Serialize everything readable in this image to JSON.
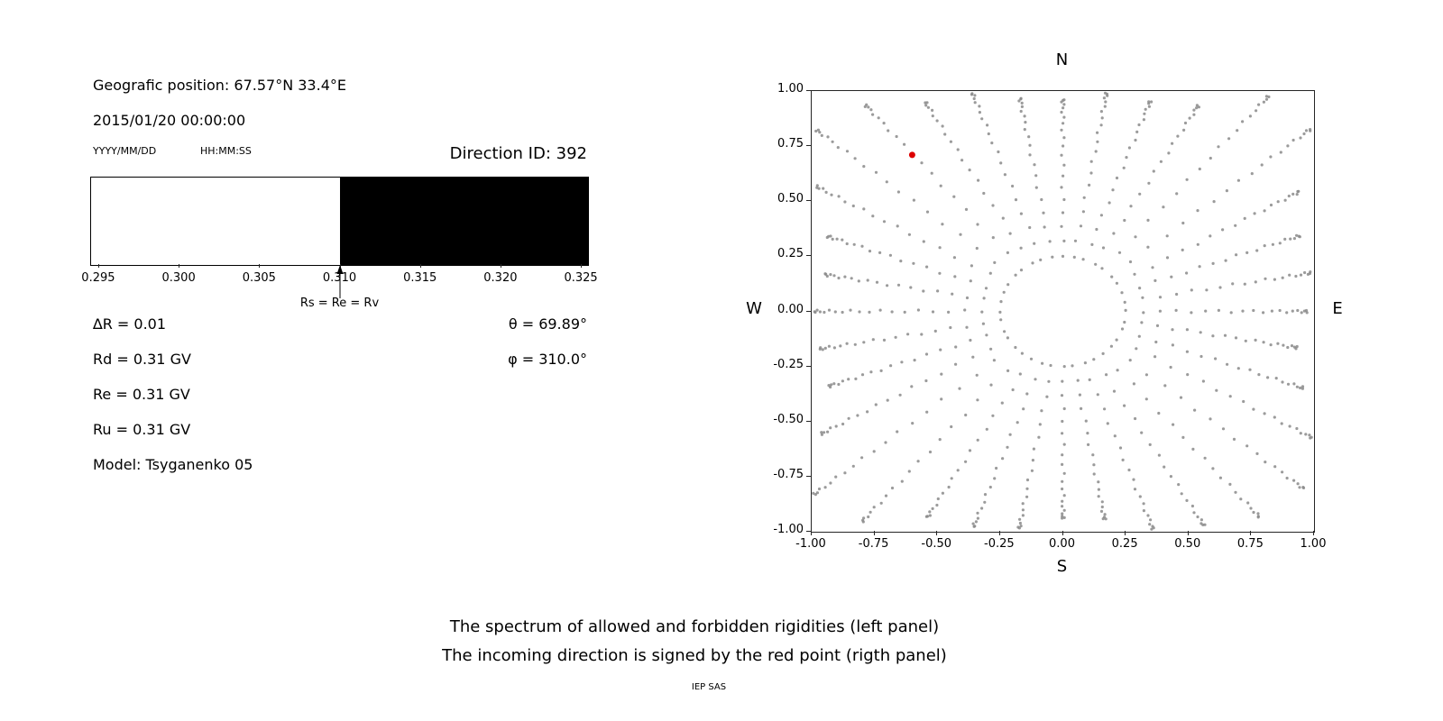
{
  "left_panel": {
    "position_label": "Geografic position: 67.57°N 33.4°E",
    "datetime": "2015/01/20 00:00:00",
    "date_format": "YYYY/MM/DD",
    "time_format": "HH:MM:SS",
    "direction_id": "Direction ID: 392",
    "delta_r": "∆R = 0.01",
    "rd": "Rd = 0.31 GV",
    "re": "Re = 0.31 GV",
    "ru": "Ru = 0.31 GV",
    "model": "Model: Tsyganenko 05",
    "theta": "θ = 69.89°",
    "phi": "φ = 310.0°"
  },
  "footer": {
    "line1": "The spectrum of allowed and forbidden rigidities (left panel)",
    "line2": "The incoming direction is signed by the red point (rigth panel)",
    "credit": "IEP SAS"
  },
  "chart_data": [
    {
      "id": "rigidity_spectrum",
      "type": "area",
      "title": "",
      "x_range": [
        0.2945,
        0.3255
      ],
      "tick_values": [
        0.295,
        0.3,
        0.305,
        0.31,
        0.315,
        0.32,
        0.325
      ],
      "tick_labels": [
        "0.295",
        "0.300",
        "0.305",
        "0.310",
        "0.315",
        "0.320",
        "0.325"
      ],
      "regions": [
        {
          "name": "allowed",
          "from": 0.2945,
          "to": 0.31,
          "color": "#ffffff"
        },
        {
          "name": "forbidden",
          "from": 0.31,
          "to": 0.3255,
          "color": "#000000"
        }
      ],
      "cutoff_value": 0.31,
      "cutoff_label": "Rs = Re = Rv"
    },
    {
      "id": "arrival_direction_map",
      "type": "scatter",
      "xlim": [
        -1.0,
        1.0
      ],
      "ylim": [
        -1.0,
        1.0
      ],
      "tick_values": [
        -1.0,
        -0.75,
        -0.5,
        -0.25,
        0.0,
        0.25,
        0.5,
        0.75,
        1.0
      ],
      "xtick_labels": [
        "-1.00",
        "-0.75",
        "-0.50",
        "-0.25",
        "0.00",
        "0.25",
        "0.50",
        "0.75",
        "1.00"
      ],
      "ytick_labels": [
        "-1.00",
        "-0.75",
        "-0.50",
        "-0.25",
        "0.00",
        "0.25",
        "0.50",
        "0.75",
        "1.00"
      ],
      "compass": {
        "top": "N",
        "bottom": "S",
        "left": "W",
        "right": "E"
      },
      "rays": {
        "count": 36,
        "azimuth_start_deg": 0,
        "azimuth_step_deg": 10,
        "inner_radius": 0.25,
        "points_per_ray": 20,
        "tip_cluster_power": 1.9
      },
      "dot_color": "#8a8a8a",
      "highlight_point": {
        "x": -0.6,
        "y": 0.71,
        "color": "#dd0000"
      }
    }
  ]
}
